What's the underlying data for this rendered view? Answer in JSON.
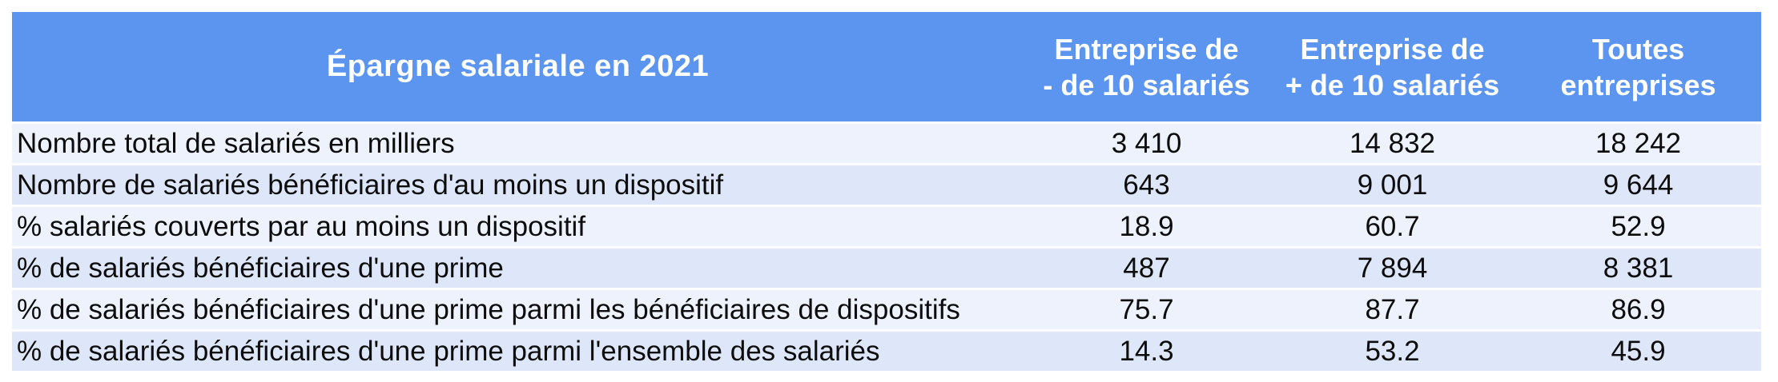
{
  "table": {
    "title": "Épargne salariale en 2021",
    "columns": [
      "Entreprise de\n- de 10 salariés",
      "Entreprise de\n+ de 10 salariés",
      "Toutes\nentreprises"
    ],
    "rows": [
      {
        "label": "Nombre total de salariés en milliers",
        "values": [
          "3 410",
          "14 832",
          "18 242"
        ]
      },
      {
        "label": "Nombre de salariés bénéficiaires d'au moins un dispositif",
        "values": [
          "643",
          "9 001",
          "9 644"
        ]
      },
      {
        "label": "% salariés couverts par au moins un dispositif",
        "values": [
          "18.9",
          "60.7",
          "52.9"
        ]
      },
      {
        "label": "% de salariés bénéficiaires d'une prime",
        "values": [
          "487",
          "7 894",
          "8 381"
        ]
      },
      {
        "label": "% de salariés bénéficiaires d'une prime parmi les bénéficiaires de dispositifs",
        "values": [
          "75.7",
          "87.7",
          "86.9"
        ]
      },
      {
        "label": "% de salariés bénéficiaires d'une prime parmi l'ensemble des salariés",
        "values": [
          "14.3",
          "53.2",
          "45.9"
        ]
      }
    ]
  },
  "colors": {
    "header_bg": "#5B95F0",
    "header_text": "#FFFFFF",
    "row_light": "#EDF2FC",
    "row_dark": "#DEE7F9",
    "body_text": "#0D0D0D"
  },
  "chart_data": {
    "type": "table",
    "title": "Épargne salariale en 2021",
    "columns": [
      "Entreprise de - de 10 salariés",
      "Entreprise de + de 10 salariés",
      "Toutes entreprises"
    ],
    "row_labels": [
      "Nombre total de salariés en milliers",
      "Nombre de salariés bénéficiaires d'au moins un dispositif",
      "% salariés couverts par au moins un dispositif",
      "% de salariés bénéficiaires d'une prime",
      "% de salariés bénéficiaires d'une prime parmi les bénéficiaires de dispositifs",
      "% de salariés bénéficiaires d'une prime parmi l'ensemble des salariés"
    ],
    "series": [
      {
        "name": "Entreprise de - de 10 salariés",
        "values": [
          3410,
          643,
          18.9,
          487,
          75.7,
          14.3
        ]
      },
      {
        "name": "Entreprise de + de 10 salariés",
        "values": [
          14832,
          9001,
          60.7,
          7894,
          87.7,
          53.2
        ]
      },
      {
        "name": "Toutes entreprises",
        "values": [
          18242,
          9644,
          52.9,
          8381,
          86.9,
          45.9
        ]
      }
    ]
  }
}
